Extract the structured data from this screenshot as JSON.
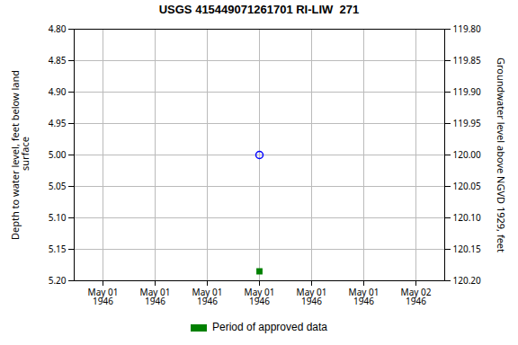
{
  "chart_data": {
    "type": "scatter",
    "title": "USGS 415449071261701 RI-LIW  271",
    "ylabel": "Depth to water level, feet below land\n surface",
    "y2label": "Groundwater level above NGVD 1929, feet",
    "categories": [
      "May 01\n1946",
      "May 01\n1946",
      "May 01\n1946",
      "May 01\n1946",
      "May 01\n1946",
      "May 01\n1946",
      "May 02\n1946"
    ],
    "series": [
      {
        "color": "blue",
        "marker": "circle",
        "values": [
          null,
          null,
          null,
          5,
          null,
          null,
          null
        ]
      },
      {
        "name": "Period of approved data",
        "color": "#008000",
        "marker": "square",
        "values": [
          null,
          null,
          null,
          5.185,
          null,
          null,
          null
        ]
      }
    ],
    "ylim": [
      5.2,
      4.8
    ],
    "yticks": [
      {
        "value": 4.8,
        "label": "4.80"
      },
      4.85,
      {
        "value": 4.9,
        "label": "4.90"
      },
      4.95,
      {
        "value": 5,
        "label": "5.00"
      },
      5.05,
      {
        "value": 5.1,
        "label": "5.10"
      },
      5.15,
      {
        "value": 5.2,
        "label": "5.20"
      }
    ],
    "y2lim": [
      120.2,
      119.8
    ],
    "y2ticks": [
      {
        "value": 120.2,
        "label": "120.20"
      },
      120.15,
      {
        "value": 120.1,
        "label": "120.10"
      },
      120.05,
      {
        "value": 120,
        "label": "120.00"
      },
      119.95,
      {
        "value": 119.9,
        "label": "119.90"
      },
      119.85,
      {
        "value": 119.8,
        "label": "119.80"
      }
    ],
    "grid": true,
    "legend": "bottom"
  }
}
